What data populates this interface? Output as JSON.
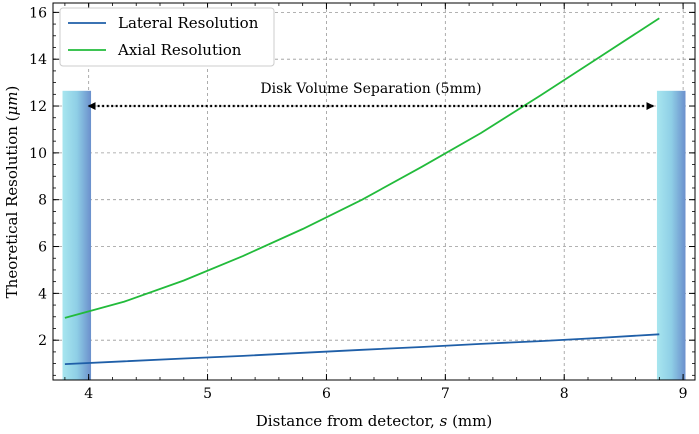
{
  "chart_data": {
    "type": "line",
    "title": "",
    "xlabel": "Distance from detector, ",
    "xlabel_var": "s",
    "xlabel_unit": " (mm)",
    "ylabel": "Theoretical Resolution (",
    "ylabel_var": "μm",
    "ylabel_end": ")",
    "xlim": [
      3.7,
      9.1
    ],
    "ylim": [
      0.3,
      16.4
    ],
    "x_ticks": [
      4,
      5,
      6,
      7,
      8,
      9
    ],
    "y_ticks": [
      2,
      4,
      6,
      8,
      10,
      12,
      14,
      16
    ],
    "x_tick_labels": [
      "4",
      "5",
      "6",
      "7",
      "8",
      "9"
    ],
    "y_tick_labels": [
      "2",
      "4",
      "6",
      "8",
      "10",
      "12",
      "14",
      "16"
    ],
    "grid": true,
    "legend_position": "top-left",
    "series": [
      {
        "name": "Lateral Resolution",
        "color": "#1f5fa8",
        "x": [
          3.8,
          4.3,
          4.8,
          5.3,
          5.8,
          6.3,
          6.8,
          7.3,
          7.8,
          8.3,
          8.8
        ],
        "y": [
          0.98,
          1.1,
          1.22,
          1.33,
          1.46,
          1.59,
          1.71,
          1.84,
          1.96,
          2.1,
          2.25
        ]
      },
      {
        "name": "Axial Resolution",
        "color": "#22bb3b",
        "x": [
          3.8,
          4.3,
          4.8,
          5.3,
          5.8,
          6.3,
          6.8,
          7.3,
          7.8,
          8.3,
          8.8
        ],
        "y": [
          2.95,
          3.65,
          4.55,
          5.6,
          6.75,
          8.0,
          9.4,
          10.85,
          12.45,
          14.1,
          15.75
        ]
      }
    ],
    "annotation": {
      "text": "Disk Volume Separation (5mm)",
      "arrow_x": [
        4.0,
        8.75
      ],
      "arrow_y": 12.0
    },
    "disk_regions": [
      {
        "x_start": 3.78,
        "x_end": 4.02,
        "y_top": 12.65
      },
      {
        "x_start": 8.78,
        "x_end": 9.02,
        "y_top": 12.65
      }
    ]
  }
}
